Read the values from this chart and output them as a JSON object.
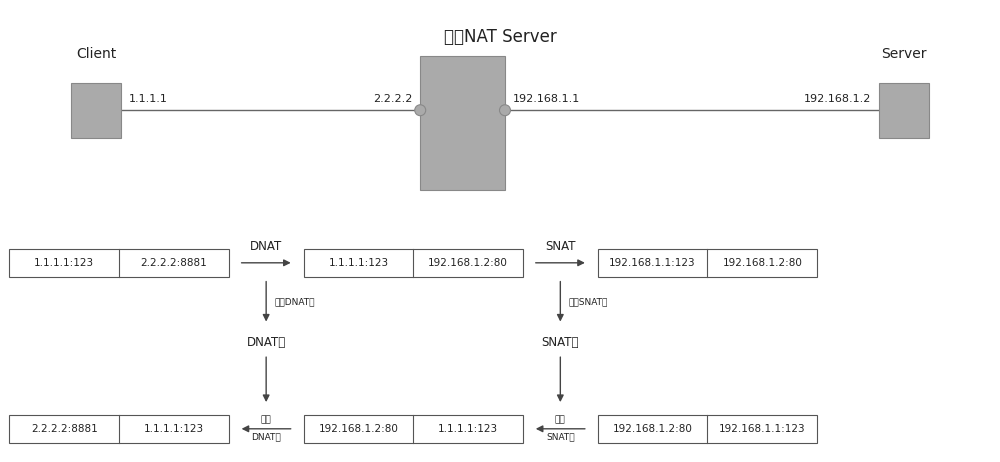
{
  "title": "双向NAT Server",
  "bg_color": "#ffffff",
  "box_color": "#aaaaaa",
  "box_edge": "#888888",
  "line_color": "#666666",
  "text_color": "#222222",
  "client_label": "Client",
  "server_label": "Server",
  "client_ip": "1.1.1.1",
  "nat_left_ip": "2.2.2.2",
  "nat_right_ip": "192.168.1.1",
  "server_ip": "192.168.1.2",
  "dnat_label": "DNAT",
  "snat_label": "SNAT",
  "dnat_table_label": "DNAT表",
  "snat_table_label": "SNAT表",
  "record_dnat": "记入DNAT表",
  "record_snat": "记入SNAT表",
  "check_dnat_line1": "检查",
  "check_dnat_line2": "DNAT表",
  "check_snat_line1": "检查",
  "check_snat_line2": "SNAT表",
  "row1_p1": [
    "1.1.1.1:123",
    "2.2.2.2:8881"
  ],
  "row1_p2": [
    "1.1.1.1:123",
    "192.168.1.2:80"
  ],
  "row1_p3": [
    "192.168.1.1:123",
    "192.168.1.2:80"
  ],
  "row2_p1": [
    "2.2.2.2:8881",
    "1.1.1.1:123"
  ],
  "row2_p2": [
    "192.168.1.2:80",
    "1.1.1.1:123"
  ],
  "row2_p3": [
    "192.168.1.2:80",
    "192.168.1.1:123"
  ]
}
